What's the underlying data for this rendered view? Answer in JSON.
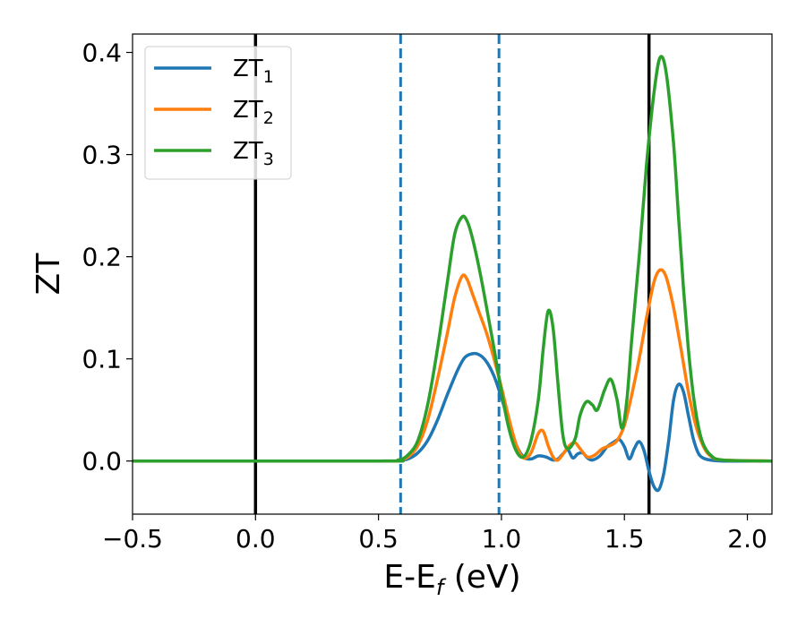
{
  "chart_data": {
    "type": "line",
    "xlabel": "E-E_f (eV)",
    "ylabel": "ZT",
    "xlim": [
      -0.5,
      2.1
    ],
    "ylim": [
      -0.052,
      0.418
    ],
    "grid": false,
    "legend_position": "top-left",
    "x_ticks": [
      {
        "value": -0.5,
        "label": "−0.5"
      },
      {
        "value": 0.0,
        "label": "0.0"
      },
      {
        "value": 0.5,
        "label": "0.5"
      },
      {
        "value": 1.0,
        "label": "1.0"
      },
      {
        "value": 1.5,
        "label": "1.5"
      },
      {
        "value": 2.0,
        "label": "2.0"
      }
    ],
    "y_ticks": [
      {
        "value": 0.0,
        "label": "0.0"
      },
      {
        "value": 0.1,
        "label": "0.1"
      },
      {
        "value": 0.2,
        "label": "0.2"
      },
      {
        "value": 0.3,
        "label": "0.3"
      },
      {
        "value": 0.4,
        "label": "0.4"
      }
    ],
    "reference_lines": [
      {
        "x": 0.0,
        "color": "#000000",
        "style": "solid"
      },
      {
        "x": 1.6,
        "color": "#000000",
        "style": "solid"
      },
      {
        "x": 0.59,
        "color": "#1f77b4",
        "style": "dashed"
      },
      {
        "x": 0.99,
        "color": "#1f77b4",
        "style": "dashed"
      }
    ],
    "series": [
      {
        "name": "ZT_1",
        "legend_base": "ZT",
        "legend_sub": "1",
        "color": "#1f77b4",
        "points": [
          [
            -0.5,
            0
          ],
          [
            0.5,
            0
          ],
          [
            0.58,
            0.0005
          ],
          [
            0.62,
            0.002
          ],
          [
            0.66,
            0.008
          ],
          [
            0.7,
            0.02
          ],
          [
            0.74,
            0.04
          ],
          [
            0.78,
            0.065
          ],
          [
            0.82,
            0.088
          ],
          [
            0.85,
            0.101
          ],
          [
            0.88,
            0.105
          ],
          [
            0.91,
            0.104
          ],
          [
            0.94,
            0.097
          ],
          [
            0.97,
            0.083
          ],
          [
            1.0,
            0.062
          ],
          [
            1.03,
            0.038
          ],
          [
            1.06,
            0.016
          ],
          [
            1.09,
            0.004
          ],
          [
            1.12,
            0.002
          ],
          [
            1.15,
            0.005
          ],
          [
            1.18,
            0.004
          ],
          [
            1.21,
            0.001
          ],
          [
            1.23,
            0.002
          ],
          [
            1.25,
            0.007
          ],
          [
            1.27,
            0.011
          ],
          [
            1.29,
            0.003
          ],
          [
            1.31,
            0.007
          ],
          [
            1.33,
            0.008
          ],
          [
            1.35,
            0.003
          ],
          [
            1.37,
            0.001
          ],
          [
            1.4,
            0.005
          ],
          [
            1.43,
            0.014
          ],
          [
            1.46,
            0.019
          ],
          [
            1.48,
            0.021
          ],
          [
            1.5,
            0.014
          ],
          [
            1.52,
            0.002
          ],
          [
            1.54,
            0.012
          ],
          [
            1.56,
            0.019
          ],
          [
            1.58,
            0.01
          ],
          [
            1.6,
            -0.01
          ],
          [
            1.62,
            -0.025
          ],
          [
            1.64,
            -0.028
          ],
          [
            1.66,
            -0.012
          ],
          [
            1.68,
            0.02
          ],
          [
            1.7,
            0.06
          ],
          [
            1.72,
            0.075
          ],
          [
            1.74,
            0.068
          ],
          [
            1.76,
            0.045
          ],
          [
            1.78,
            0.022
          ],
          [
            1.8,
            0.008
          ],
          [
            1.82,
            0.003
          ],
          [
            1.85,
            0.001
          ],
          [
            1.9,
            0
          ],
          [
            2.1,
            0
          ]
        ]
      },
      {
        "name": "ZT_2",
        "legend_base": "ZT",
        "legend_sub": "2",
        "color": "#ff7f0e",
        "points": [
          [
            -0.5,
            0
          ],
          [
            0.5,
            0
          ],
          [
            0.58,
            0.001
          ],
          [
            0.62,
            0.004
          ],
          [
            0.66,
            0.015
          ],
          [
            0.7,
            0.04
          ],
          [
            0.74,
            0.08
          ],
          [
            0.78,
            0.125
          ],
          [
            0.81,
            0.16
          ],
          [
            0.84,
            0.181
          ],
          [
            0.86,
            0.178
          ],
          [
            0.88,
            0.165
          ],
          [
            0.91,
            0.145
          ],
          [
            0.94,
            0.125
          ],
          [
            0.97,
            0.1
          ],
          [
            1.0,
            0.072
          ],
          [
            1.03,
            0.042
          ],
          [
            1.06,
            0.016
          ],
          [
            1.09,
            0.003
          ],
          [
            1.12,
            0.008
          ],
          [
            1.15,
            0.027
          ],
          [
            1.17,
            0.029
          ],
          [
            1.19,
            0.015
          ],
          [
            1.21,
            0.004
          ],
          [
            1.23,
            0.001
          ],
          [
            1.26,
            0.01
          ],
          [
            1.28,
            0.016
          ],
          [
            1.3,
            0.018
          ],
          [
            1.32,
            0.012
          ],
          [
            1.35,
            0.004
          ],
          [
            1.38,
            0.006
          ],
          [
            1.41,
            0.012
          ],
          [
            1.44,
            0.015
          ],
          [
            1.47,
            0.02
          ],
          [
            1.5,
            0.035
          ],
          [
            1.53,
            0.065
          ],
          [
            1.56,
            0.1
          ],
          [
            1.59,
            0.14
          ],
          [
            1.62,
            0.175
          ],
          [
            1.645,
            0.187
          ],
          [
            1.67,
            0.18
          ],
          [
            1.7,
            0.15
          ],
          [
            1.73,
            0.11
          ],
          [
            1.76,
            0.068
          ],
          [
            1.79,
            0.035
          ],
          [
            1.82,
            0.015
          ],
          [
            1.85,
            0.005
          ],
          [
            1.9,
            0.001
          ],
          [
            2.1,
            0
          ]
        ]
      },
      {
        "name": "ZT_3",
        "legend_base": "ZT",
        "legend_sub": "3",
        "color": "#2ca02c",
        "points": [
          [
            -0.5,
            0
          ],
          [
            0.5,
            0
          ],
          [
            0.58,
            0.001
          ],
          [
            0.62,
            0.006
          ],
          [
            0.66,
            0.02
          ],
          [
            0.7,
            0.055
          ],
          [
            0.74,
            0.11
          ],
          [
            0.78,
            0.175
          ],
          [
            0.81,
            0.222
          ],
          [
            0.84,
            0.239
          ],
          [
            0.86,
            0.235
          ],
          [
            0.88,
            0.22
          ],
          [
            0.91,
            0.188
          ],
          [
            0.94,
            0.15
          ],
          [
            0.97,
            0.11
          ],
          [
            1.0,
            0.068
          ],
          [
            1.03,
            0.032
          ],
          [
            1.06,
            0.01
          ],
          [
            1.09,
            0.004
          ],
          [
            1.12,
            0.02
          ],
          [
            1.15,
            0.06
          ],
          [
            1.17,
            0.11
          ],
          [
            1.19,
            0.147
          ],
          [
            1.21,
            0.13
          ],
          [
            1.23,
            0.075
          ],
          [
            1.25,
            0.025
          ],
          [
            1.27,
            0.012
          ],
          [
            1.3,
            0.022
          ],
          [
            1.32,
            0.045
          ],
          [
            1.345,
            0.058
          ],
          [
            1.37,
            0.055
          ],
          [
            1.39,
            0.05
          ],
          [
            1.42,
            0.07
          ],
          [
            1.445,
            0.08
          ],
          [
            1.47,
            0.06
          ],
          [
            1.49,
            0.032
          ],
          [
            1.51,
            0.06
          ],
          [
            1.53,
            0.12
          ],
          [
            1.56,
            0.2
          ],
          [
            1.59,
            0.29
          ],
          [
            1.62,
            0.36
          ],
          [
            1.645,
            0.395
          ],
          [
            1.67,
            0.38
          ],
          [
            1.7,
            0.31
          ],
          [
            1.72,
            0.24
          ],
          [
            1.74,
            0.17
          ],
          [
            1.76,
            0.11
          ],
          [
            1.78,
            0.065
          ],
          [
            1.8,
            0.035
          ],
          [
            1.82,
            0.017
          ],
          [
            1.85,
            0.006
          ],
          [
            1.9,
            0.001
          ],
          [
            2.1,
            0
          ]
        ]
      }
    ]
  }
}
